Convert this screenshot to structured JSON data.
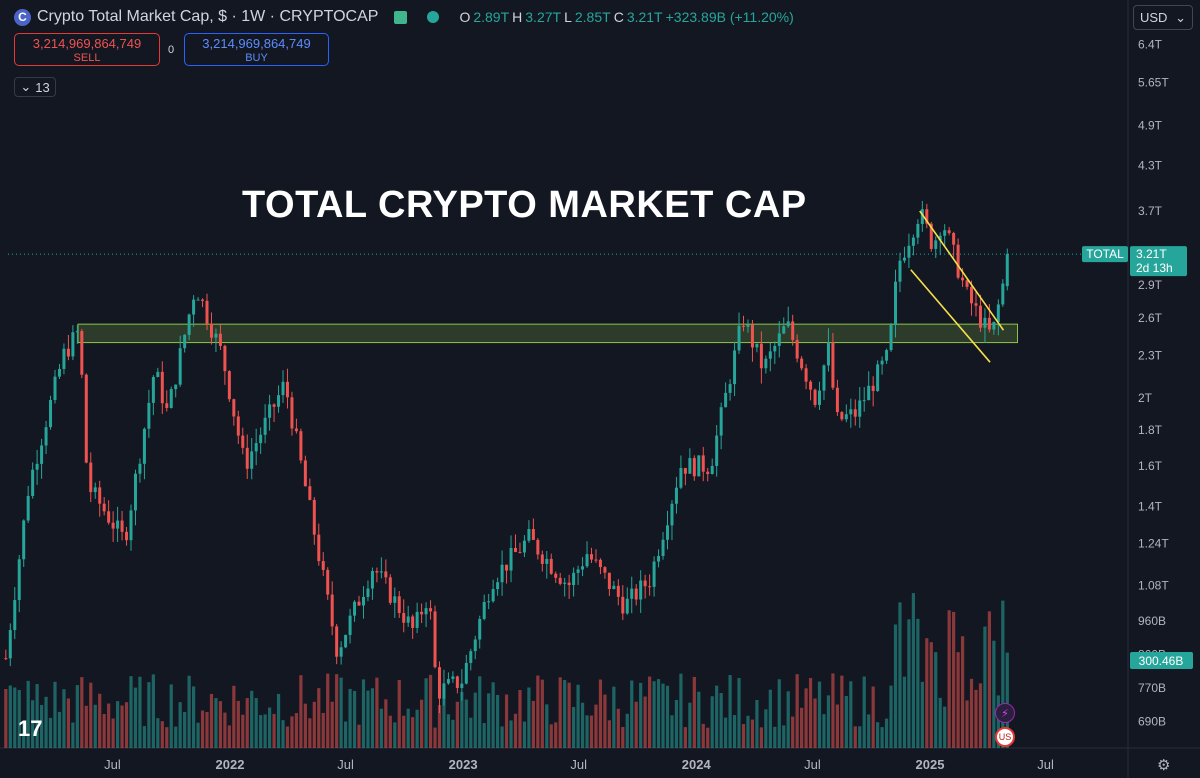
{
  "header": {
    "symbol_icon": "crypto-cap-coin-icon",
    "title": "Crypto Total Market Cap, $ · 1W · CRYPTOCAP",
    "ohlc": {
      "o_label": "O",
      "o_value": "2.89T",
      "h_label": "H",
      "h_value": "3.27T",
      "l_label": "L",
      "l_value": "2.85T",
      "c_label": "C",
      "c_value": "3.21T",
      "change": "+323.89B (+11.20%)"
    }
  },
  "trade": {
    "sell_price": "3,214,969,864,749",
    "sell_label": "SELL",
    "spread": "0",
    "buy_price": "3,214,969,864,749",
    "buy_label": "BUY"
  },
  "indicators_toggle": "13",
  "currency": "USD",
  "annotation": "TOTAL CRYPTO MARKET CAP",
  "logo": "17",
  "price_badge": {
    "symbol": "TOTAL",
    "price": "3.21T",
    "countdown": "2d 13h"
  },
  "volume_badge": "300.46B",
  "colors": {
    "background": "#131722",
    "up": "#26a69a",
    "down": "#ef5350",
    "zone": "#8bc34a",
    "wedge": "#f5e04a"
  },
  "chart_data": {
    "type": "candlestick",
    "title": "Crypto Total Market Cap",
    "interval": "1W",
    "y_scale": "log",
    "y_ticks": [
      "6.4T",
      "5.65T",
      "4.9T",
      "4.3T",
      "3.7T",
      "3.2T",
      "2.9T",
      "2.6T",
      "2.3T",
      "2T",
      "1.8T",
      "1.6T",
      "1.4T",
      "1.24T",
      "1.08T",
      "960B",
      "860B",
      "770B",
      "690B"
    ],
    "x_ticks": [
      "Jul",
      "2022",
      "Jul",
      "2023",
      "Jul",
      "2024",
      "Jul",
      "2025",
      "Jul"
    ],
    "waypoints": [
      [
        "2021-01-15",
        0.85
      ],
      [
        "2021-02-20",
        1.5
      ],
      [
        "2021-04-15",
        2.3
      ],
      [
        "2021-05-10",
        2.5
      ],
      [
        "2021-05-23",
        1.5
      ],
      [
        "2021-07-20",
        1.25
      ],
      [
        "2021-09-05",
        2.2
      ],
      [
        "2021-09-25",
        1.9
      ],
      [
        "2021-11-08",
        2.9
      ],
      [
        "2021-12-20",
        2.3
      ],
      [
        "2022-01-24",
        1.6
      ],
      [
        "2022-03-28",
        2.1
      ],
      [
        "2022-05-12",
        1.3
      ],
      [
        "2022-06-18",
        0.87
      ],
      [
        "2022-08-13",
        1.15
      ],
      [
        "2022-10-15",
        0.93
      ],
      [
        "2022-11-08",
        1.05
      ],
      [
        "2022-11-21",
        0.76
      ],
      [
        "2022-12-30",
        0.79
      ],
      [
        "2023-02-15",
        1.1
      ],
      [
        "2023-04-14",
        1.26
      ],
      [
        "2023-06-15",
        1.08
      ],
      [
        "2023-07-14",
        1.2
      ],
      [
        "2023-09-11",
        1.01
      ],
      [
        "2023-10-20",
        1.1
      ],
      [
        "2023-12-08",
        1.6
      ],
      [
        "2024-01-23",
        1.6
      ],
      [
        "2024-03-14",
        2.6
      ],
      [
        "2024-04-15",
        2.2
      ],
      [
        "2024-05-22",
        2.55
      ],
      [
        "2024-07-05",
        2.0
      ],
      [
        "2024-07-29",
        2.4
      ],
      [
        "2024-08-05",
        1.85
      ],
      [
        "2024-09-06",
        1.9
      ],
      [
        "2024-10-28",
        2.3
      ],
      [
        "2024-11-12",
        3.1
      ],
      [
        "2024-12-16",
        3.7
      ],
      [
        "2025-01-06",
        3.3
      ],
      [
        "2025-01-20",
        3.6
      ],
      [
        "2025-02-28",
        2.8
      ],
      [
        "2025-03-31",
        2.5
      ],
      [
        "2025-04-08",
        2.45
      ],
      [
        "2025-04-25",
        2.9
      ],
      [
        "2025-05-05",
        3.21
      ]
    ],
    "last": {
      "open": 2.89,
      "high": 3.27,
      "low": 2.85,
      "close": 3.21
    },
    "support_zone": {
      "low": 2.4,
      "high": 2.55
    },
    "wedge_upper": [
      [
        "2024-12-16",
        3.7
      ],
      [
        "2025-04-26",
        2.5
      ]
    ],
    "wedge_lower": [
      [
        "2024-12-02",
        3.05
      ],
      [
        "2025-04-05",
        2.25
      ]
    ],
    "current_price_line": 3.21,
    "volume_last": "300.46B"
  }
}
